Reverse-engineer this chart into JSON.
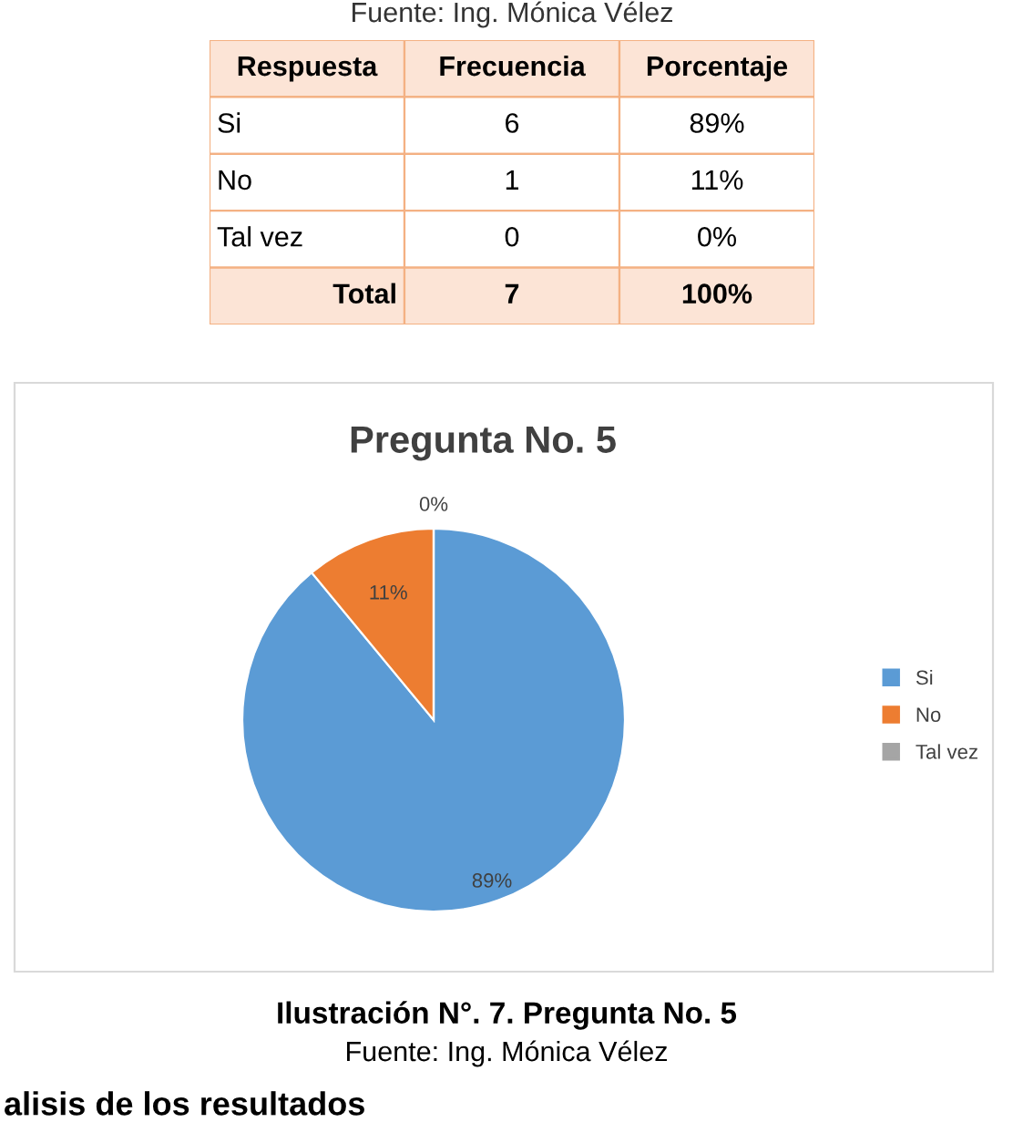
{
  "chart_data": [
    {
      "type": "other",
      "title": "Fuente: Ing. Mónica Vélez",
      "categories": [
        "Respuesta",
        "Frecuencia",
        "Porcentaje"
      ],
      "annotations": [
        "Si",
        "6",
        "89%",
        "No",
        "1",
        "11%",
        "Tal vez",
        "0",
        "0%",
        "Total",
        "7",
        "100%"
      ]
    },
    {
      "type": "pie",
      "title": "Pregunta No. 5",
      "categories": [
        "Si",
        "No",
        "Tal vez"
      ],
      "values": [
        89,
        11,
        0
      ],
      "colors": [
        "#5b9bd5",
        "#ed7d31",
        "#a5a5a5"
      ],
      "value_labels": [
        "89%",
        "11%",
        "0%"
      ],
      "legend": "right",
      "annotations": [
        "Ilustración N°. 7. Pregunta No. 5",
        "Fuente: Ing. Mónica Vélez",
        "alisis de los resultados"
      ]
    }
  ]
}
